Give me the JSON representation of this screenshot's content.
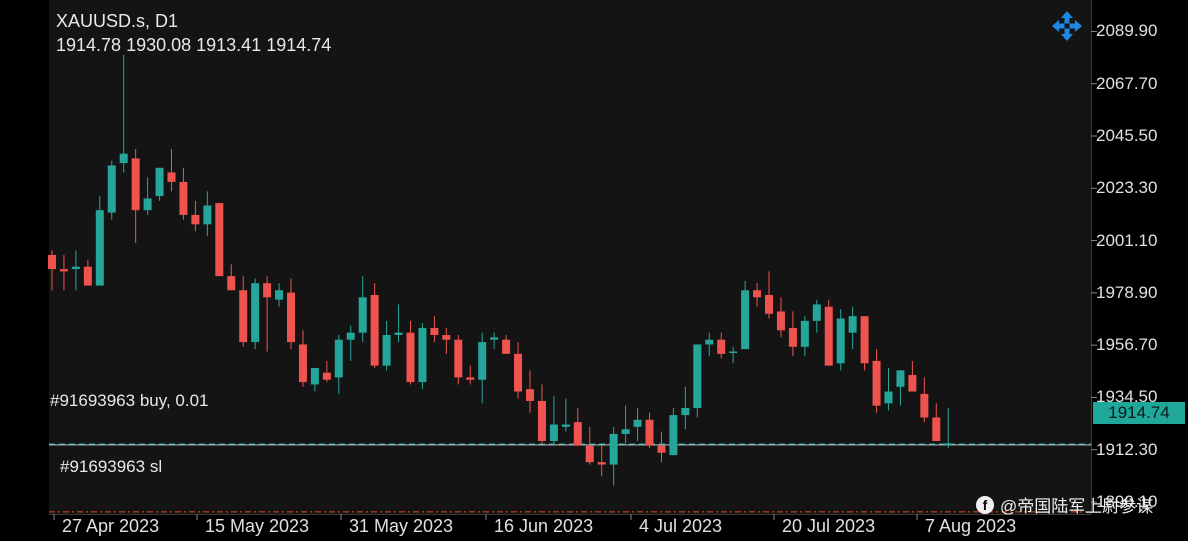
{
  "header": {
    "symbol_title": "XAUUSD.s, D1",
    "ohlc_readout": "1914.78 1930.08 1913.41 1914.74"
  },
  "colors": {
    "bull": "#26a69a",
    "bear": "#ef5350",
    "buy_line": "#26a69a",
    "sl_line": "#e64a19",
    "badge": "#1fa89a"
  },
  "orders": {
    "buy_label": "#91693963 buy, 0.01",
    "sl_label": "#91693963 sl"
  },
  "current_price": "1914.74",
  "watermark": {
    "logo": "f",
    "text": "@帝国陆军上尉参谋"
  },
  "icons": {
    "move": "four-arrows-move-icon"
  },
  "chart_data": {
    "type": "candlestick",
    "symbol": "XAUUSD.s",
    "timeframe": "D1",
    "y_ticks": [
      "2089.90",
      "2067.70",
      "2045.50",
      "2023.30",
      "2001.10",
      "1978.90",
      "1956.70",
      "1934.50",
      "1912.30",
      "1890.10"
    ],
    "ylim": [
      1885.0,
      2099.0
    ],
    "x_ticks": [
      "27 Apr 2023",
      "15 May 2023",
      "31 May 2023",
      "16 Jun 2023",
      "4 Jul 2023",
      "20 Jul 2023",
      "7 Aug 2023"
    ],
    "buy_price": 1914.74,
    "sl_price": 1885.9,
    "candles": [
      [
        1995,
        1997,
        1980,
        1989
      ],
      [
        1989,
        1995,
        1980,
        1988
      ],
      [
        1989,
        1997,
        1980,
        1990
      ],
      [
        1990,
        1993,
        1982,
        1982
      ],
      [
        1982,
        2020,
        1982,
        2014
      ],
      [
        2013,
        2035,
        2010,
        2033
      ],
      [
        2034,
        2080,
        2030,
        2038
      ],
      [
        2036,
        2040,
        2000,
        2014
      ],
      [
        2014,
        2028,
        2012,
        2019
      ],
      [
        2020,
        2032,
        2018,
        2032
      ],
      [
        2030,
        2040,
        2022,
        2026
      ],
      [
        2026,
        2032,
        2010,
        2012
      ],
      [
        2012,
        2018,
        2005,
        2008
      ],
      [
        2008,
        2022,
        2003,
        2016
      ],
      [
        2017,
        2017,
        1986,
        1986
      ],
      [
        1986,
        1991,
        1980,
        1980
      ],
      [
        1980,
        1986,
        1956,
        1958
      ],
      [
        1958,
        1985,
        1955,
        1983
      ],
      [
        1983,
        1986,
        1954,
        1977
      ],
      [
        1976,
        1983,
        1973,
        1980
      ],
      [
        1979,
        1985,
        1955,
        1958
      ],
      [
        1957,
        1963,
        1939,
        1941
      ],
      [
        1940,
        1947,
        1937,
        1947
      ],
      [
        1945,
        1950,
        1941,
        1942
      ],
      [
        1943,
        1961,
        1936,
        1959
      ],
      [
        1959,
        1965,
        1950,
        1962
      ],
      [
        1962,
        1986,
        1958,
        1977
      ],
      [
        1978,
        1983,
        1947,
        1948
      ],
      [
        1948,
        1967,
        1946,
        1961
      ],
      [
        1961,
        1974,
        1958,
        1962
      ],
      [
        1962,
        1967,
        1940,
        1941
      ],
      [
        1941,
        1966,
        1938,
        1964
      ],
      [
        1964,
        1969,
        1958,
        1961
      ],
      [
        1961,
        1964,
        1953,
        1959
      ],
      [
        1959,
        1961,
        1940,
        1943
      ],
      [
        1943,
        1948,
        1940,
        1942
      ],
      [
        1942,
        1962,
        1932,
        1958
      ],
      [
        1959,
        1962,
        1955,
        1960
      ],
      [
        1959,
        1961,
        1954,
        1953
      ],
      [
        1953,
        1958,
        1934,
        1937
      ],
      [
        1938,
        1946,
        1928,
        1933
      ],
      [
        1933,
        1940,
        1915,
        1916
      ],
      [
        1916,
        1935,
        1914,
        1923
      ],
      [
        1922,
        1934,
        1920,
        1923
      ],
      [
        1924,
        1930,
        1914,
        1914
      ],
      [
        1914,
        1922,
        1906,
        1907
      ],
      [
        1907,
        1914,
        1901,
        1906
      ],
      [
        1906,
        1922,
        1897,
        1919
      ],
      [
        1919,
        1931,
        1915,
        1921
      ],
      [
        1922,
        1930,
        1916,
        1925
      ],
      [
        1925,
        1928,
        1913,
        1914
      ],
      [
        1914,
        1920,
        1907,
        1911
      ],
      [
        1910,
        1930,
        1910,
        1927
      ],
      [
        1927,
        1939,
        1921,
        1930
      ],
      [
        1930,
        1955,
        1926,
        1957
      ],
      [
        1957,
        1962,
        1952,
        1959
      ],
      [
        1959,
        1962,
        1951,
        1953
      ],
      [
        1954,
        1956,
        1949,
        1954
      ],
      [
        1955,
        1984,
        1955,
        1980
      ],
      [
        1980,
        1983,
        1973,
        1977
      ],
      [
        1978,
        1988,
        1968,
        1970
      ],
      [
        1971,
        1977,
        1960,
        1963
      ],
      [
        1964,
        1971,
        1952,
        1956
      ],
      [
        1956,
        1969,
        1952,
        1967
      ],
      [
        1967,
        1976,
        1962,
        1974
      ],
      [
        1973,
        1976,
        1948,
        1948
      ],
      [
        1949,
        1972,
        1946,
        1968
      ],
      [
        1962,
        1973,
        1955,
        1969
      ],
      [
        1969,
        1969,
        1946,
        1949
      ],
      [
        1950,
        1955,
        1928,
        1931
      ],
      [
        1932,
        1947,
        1929,
        1937
      ],
      [
        1939,
        1946,
        1931,
        1946
      ],
      [
        1944,
        1950,
        1937,
        1937
      ],
      [
        1936,
        1943,
        1924,
        1926
      ],
      [
        1926,
        1932,
        1916,
        1916
      ],
      [
        1915,
        1930,
        1913,
        1915
      ]
    ]
  }
}
